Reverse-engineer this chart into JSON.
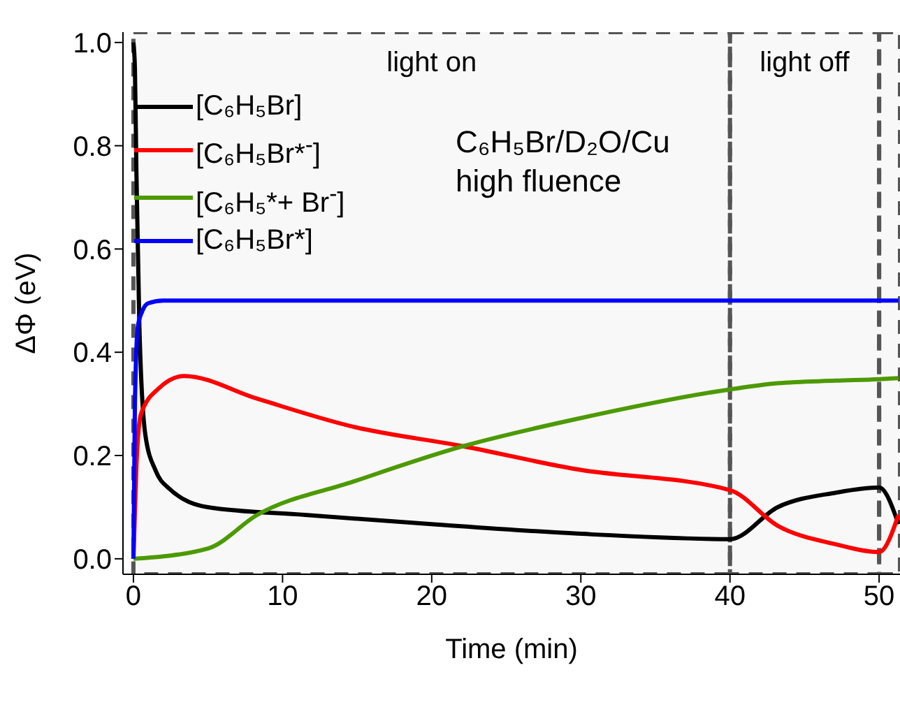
{
  "chart_data": {
    "type": "line",
    "xlabel": "Time (min)",
    "ylabel": "ΔΦ (eV)",
    "xlim": [
      -0.7,
      51.4
    ],
    "xticks": [
      0,
      10,
      20,
      30,
      40,
      50
    ],
    "ylim": [
      -0.03,
      1.02
    ],
    "yticks": [
      {
        "value": 0,
        "label": "0.0"
      },
      0.2,
      0.4,
      0.6,
      0.8,
      {
        "value": 1,
        "label": "1.0"
      }
    ],
    "grid": false,
    "legend": "top left",
    "line_style": "solid",
    "marker": "none",
    "series": [
      {
        "name": "[C₆H₅Br]",
        "color": "#000000",
        "x": [
          0,
          0.1,
          0.2,
          0.4,
          0.8,
          1.5,
          2.4,
          5,
          11.5,
          20,
          29.6,
          40,
          43.2,
          47.1,
          50,
          51.3
        ],
        "values": [
          1.0,
          0.95,
          0.75,
          0.45,
          0.24,
          0.17,
          0.136,
          0.1,
          0.085,
          0.067,
          0.049,
          0.038,
          0.1,
          0.128,
          0.138,
          0.067
        ]
      },
      {
        "name": "[C₆H₅Br*$^{-}$]",
        "color": "#ff0000",
        "x": [
          0,
          0.2,
          0.5,
          1.7,
          3.4,
          8.3,
          14.7,
          22.1,
          29.6,
          40,
          43.2,
          47.1,
          50,
          51.3
        ],
        "values": [
          0,
          0.18,
          0.28,
          0.33,
          0.354,
          0.31,
          0.256,
          0.218,
          0.174,
          0.133,
          0.064,
          0.028,
          0.013,
          0.085
        ]
      },
      {
        "name": "[C₆H₅*+ Br$^{-}$]",
        "color": "#4c9a00",
        "x": [
          0,
          5,
          8.3,
          14.7,
          22.1,
          29.6,
          40,
          43.2,
          47.1,
          50,
          51.3
        ],
        "values": [
          0,
          0.02,
          0.085,
          0.149,
          0.218,
          0.27,
          0.328,
          0.34,
          0.345,
          0.348,
          0.35
        ]
      },
      {
        "name": "[C₆H₅Br*]",
        "color": "#0000ff",
        "x": [
          0,
          0.1,
          0.3,
          0.6,
          1,
          2,
          10,
          20,
          30,
          40,
          50,
          51.3
        ],
        "values": [
          0,
          0.3,
          0.45,
          0.48,
          0.495,
          0.5,
          0.5,
          0.5,
          0.5,
          0.5,
          0.5,
          0.5
        ]
      }
    ],
    "bands": [
      {
        "axis": "x",
        "from": 0,
        "to": 40,
        "label": "light on",
        "color": "#555555"
      },
      {
        "axis": "x",
        "from": 40,
        "to": 50,
        "label": "light off",
        "color": "#555555"
      },
      {
        "axis": "x",
        "from": 50,
        "to": 51.4,
        "color": "#555555"
      }
    ],
    "annotations": [
      "C₆H₅Br/D₂O/Cu",
      "high fluence"
    ]
  }
}
